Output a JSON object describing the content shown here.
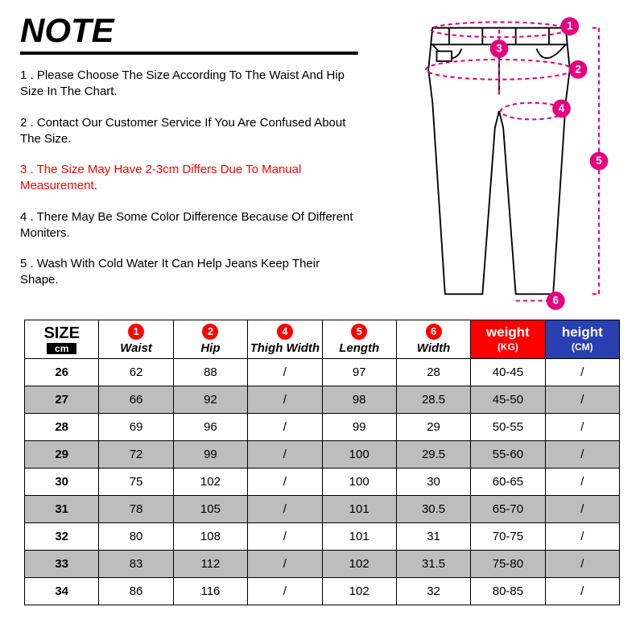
{
  "title": "NOTE",
  "notes": [
    {
      "text": "1 . Please Choose The Size According To The Waist And Hip Size In The Chart.",
      "red": false
    },
    {
      "text": "2 . Contact Our Customer Service If You Are Confused About The Size.",
      "red": false
    },
    {
      "text": "3 . The Size May Have 2-3cm Differs Due To Manual Measurement.",
      "red": true
    },
    {
      "text": "4 . There May Be Some Color Difference Because Of Different Moniters.",
      "red": false
    },
    {
      "text": "5 . Wash With Cold Water It Can Help Jeans Keep Their Shape.",
      "red": false
    }
  ],
  "diagram": {
    "marker_color": "#e6007e",
    "marker_labels": [
      "1",
      "2",
      "3",
      "4",
      "5",
      "6"
    ]
  },
  "table": {
    "size_header": {
      "big": "SIZE",
      "small": "cm"
    },
    "columns": [
      {
        "badge": "1",
        "label": "Waist"
      },
      {
        "badge": "2",
        "label": "Hip"
      },
      {
        "badge": "4",
        "label": "Thigh Width"
      },
      {
        "badge": "5",
        "label": "Length"
      },
      {
        "badge": "6",
        "label": "Width"
      }
    ],
    "weight_header": {
      "big": "weight",
      "small": "(KG)",
      "bg": "#ff0000"
    },
    "height_header": {
      "big": "height",
      "small": "(CM)",
      "bg": "#2a3fb0"
    },
    "rows": [
      {
        "size": "26",
        "waist": "62",
        "hip": "88",
        "thigh": "/",
        "length": "97",
        "width": "28",
        "weight": "40-45",
        "height": "/"
      },
      {
        "size": "27",
        "waist": "66",
        "hip": "92",
        "thigh": "/",
        "length": "98",
        "width": "28.5",
        "weight": "45-50",
        "height": "/"
      },
      {
        "size": "28",
        "waist": "69",
        "hip": "96",
        "thigh": "/",
        "length": "99",
        "width": "29",
        "weight": "50-55",
        "height": "/"
      },
      {
        "size": "29",
        "waist": "72",
        "hip": "99",
        "thigh": "/",
        "length": "100",
        "width": "29.5",
        "weight": "55-60",
        "height": "/"
      },
      {
        "size": "30",
        "waist": "75",
        "hip": "102",
        "thigh": "/",
        "length": "100",
        "width": "30",
        "weight": "60-65",
        "height": "/"
      },
      {
        "size": "31",
        "waist": "78",
        "hip": "105",
        "thigh": "/",
        "length": "101",
        "width": "30.5",
        "weight": "65-70",
        "height": "/"
      },
      {
        "size": "32",
        "waist": "80",
        "hip": "108",
        "thigh": "/",
        "length": "101",
        "width": "31",
        "weight": "70-75",
        "height": "/"
      },
      {
        "size": "33",
        "waist": "83",
        "hip": "112",
        "thigh": "/",
        "length": "102",
        "width": "31.5",
        "weight": "75-80",
        "height": "/"
      },
      {
        "size": "34",
        "waist": "86",
        "hip": "116",
        "thigh": "/",
        "length": "102",
        "width": "32",
        "weight": "80-85",
        "height": "/"
      }
    ],
    "colors": {
      "border": "#000000",
      "row_odd_bg": "#ffffff",
      "row_even_bg": "#bdbdbd",
      "badge_bg": "#ff0000"
    }
  }
}
